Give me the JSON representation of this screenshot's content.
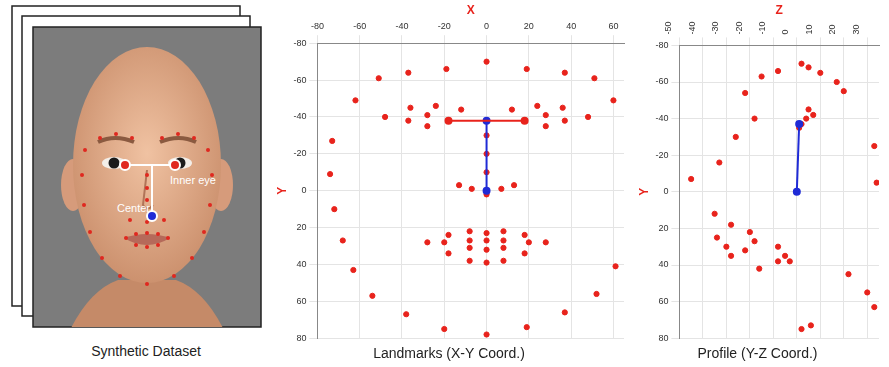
{
  "image_panel": {
    "caption": "Synthetic Dataset",
    "annotations": [
      "Inner eye",
      "Center"
    ]
  },
  "chart_data": [
    {
      "type": "scatter",
      "title": "Landmarks (X-Y Coord.)",
      "x_label": "X",
      "y_label": "Y",
      "color": "#e8231c",
      "marker": "circle",
      "grid": true,
      "xlim": [
        -80,
        65
      ],
      "xticks": [
        -80,
        -60,
        -40,
        -20,
        0,
        20,
        40,
        60
      ],
      "ylim": [
        80,
        -80
      ],
      "yticks": [
        -80,
        -60,
        -40,
        -20,
        0,
        20,
        40,
        60,
        80
      ],
      "x": [
        -73,
        -74,
        -72,
        -68,
        -63,
        -54,
        -38,
        -20,
        0,
        19,
        37,
        52,
        61,
        -62,
        -51,
        -37,
        -19,
        0,
        19,
        37,
        51,
        60,
        -48,
        -36,
        -24,
        -12,
        12,
        24,
        36,
        48,
        -37,
        -28,
        -18,
        -28,
        18,
        28,
        37,
        28,
        0,
        0,
        0,
        -13,
        -7,
        0,
        7,
        13,
        -28,
        -18,
        -8,
        0,
        8,
        18,
        28,
        18,
        8,
        0,
        -8,
        -18,
        -20,
        -8,
        0,
        8,
        20,
        8,
        0,
        -8
      ],
      "y": [
        -27,
        -9,
        10,
        27,
        43,
        57,
        67,
        75,
        78,
        74,
        66,
        56,
        41,
        -49,
        -61,
        -64,
        -66,
        -70,
        -66,
        -64,
        -61,
        -49,
        -40,
        -45,
        -46,
        -44,
        -44,
        -46,
        -45,
        -40,
        -38,
        -41,
        -38,
        -35,
        -38,
        -41,
        -38,
        -35,
        -30,
        -20,
        -10,
        -3,
        -1,
        2,
        -1,
        -3,
        28,
        24,
        22,
        23,
        22,
        24,
        28,
        34,
        38,
        39,
        38,
        34,
        28,
        27,
        27,
        27,
        28,
        31,
        32,
        31
      ],
      "segments": [
        {
          "color": "#e8231c",
          "x": [
            -18,
            18
          ],
          "y": [
            -38,
            -38
          ]
        },
        {
          "color": "#1f2bd6",
          "x": [
            0,
            0
          ],
          "y": [
            -38,
            0
          ]
        }
      ]
    },
    {
      "type": "scatter",
      "title": "Profile (Y-Z Coord.)",
      "x_label": "Z",
      "y_label": "Y",
      "color": "#e8231c",
      "marker": "circle",
      "grid": true,
      "xlim": [
        -50,
        35
      ],
      "xticks": [
        -50,
        -40,
        -30,
        -20,
        -10,
        0,
        10,
        20,
        30
      ],
      "ylim": [
        80,
        -80
      ],
      "yticks": [
        -80,
        -60,
        -40,
        -20,
        0,
        20,
        40,
        60,
        80
      ],
      "x": [
        -45,
        -33,
        -26,
        -18,
        -22,
        -15,
        -8,
        2,
        5,
        10,
        17,
        20,
        5,
        7,
        4,
        2,
        1,
        -35,
        -28,
        -34,
        -30,
        -28,
        -20,
        -18,
        -22,
        -8,
        -5,
        -3,
        -16,
        -8,
        2,
        6,
        22,
        30,
        33,
        33,
        34
      ],
      "y": [
        -7,
        -16,
        -30,
        -40,
        -54,
        -63,
        -66,
        -70,
        -68,
        -65,
        -60,
        -55,
        -45,
        -42,
        -40,
        -37,
        -35,
        12,
        18,
        25,
        30,
        35,
        22,
        27,
        32,
        30,
        35,
        38,
        42,
        38,
        75,
        73,
        45,
        55,
        63,
        -25,
        -5
      ],
      "segments": [
        {
          "color": "#1f2bd6",
          "x": [
            0,
            1
          ],
          "y": [
            0,
            -37
          ]
        }
      ]
    }
  ]
}
